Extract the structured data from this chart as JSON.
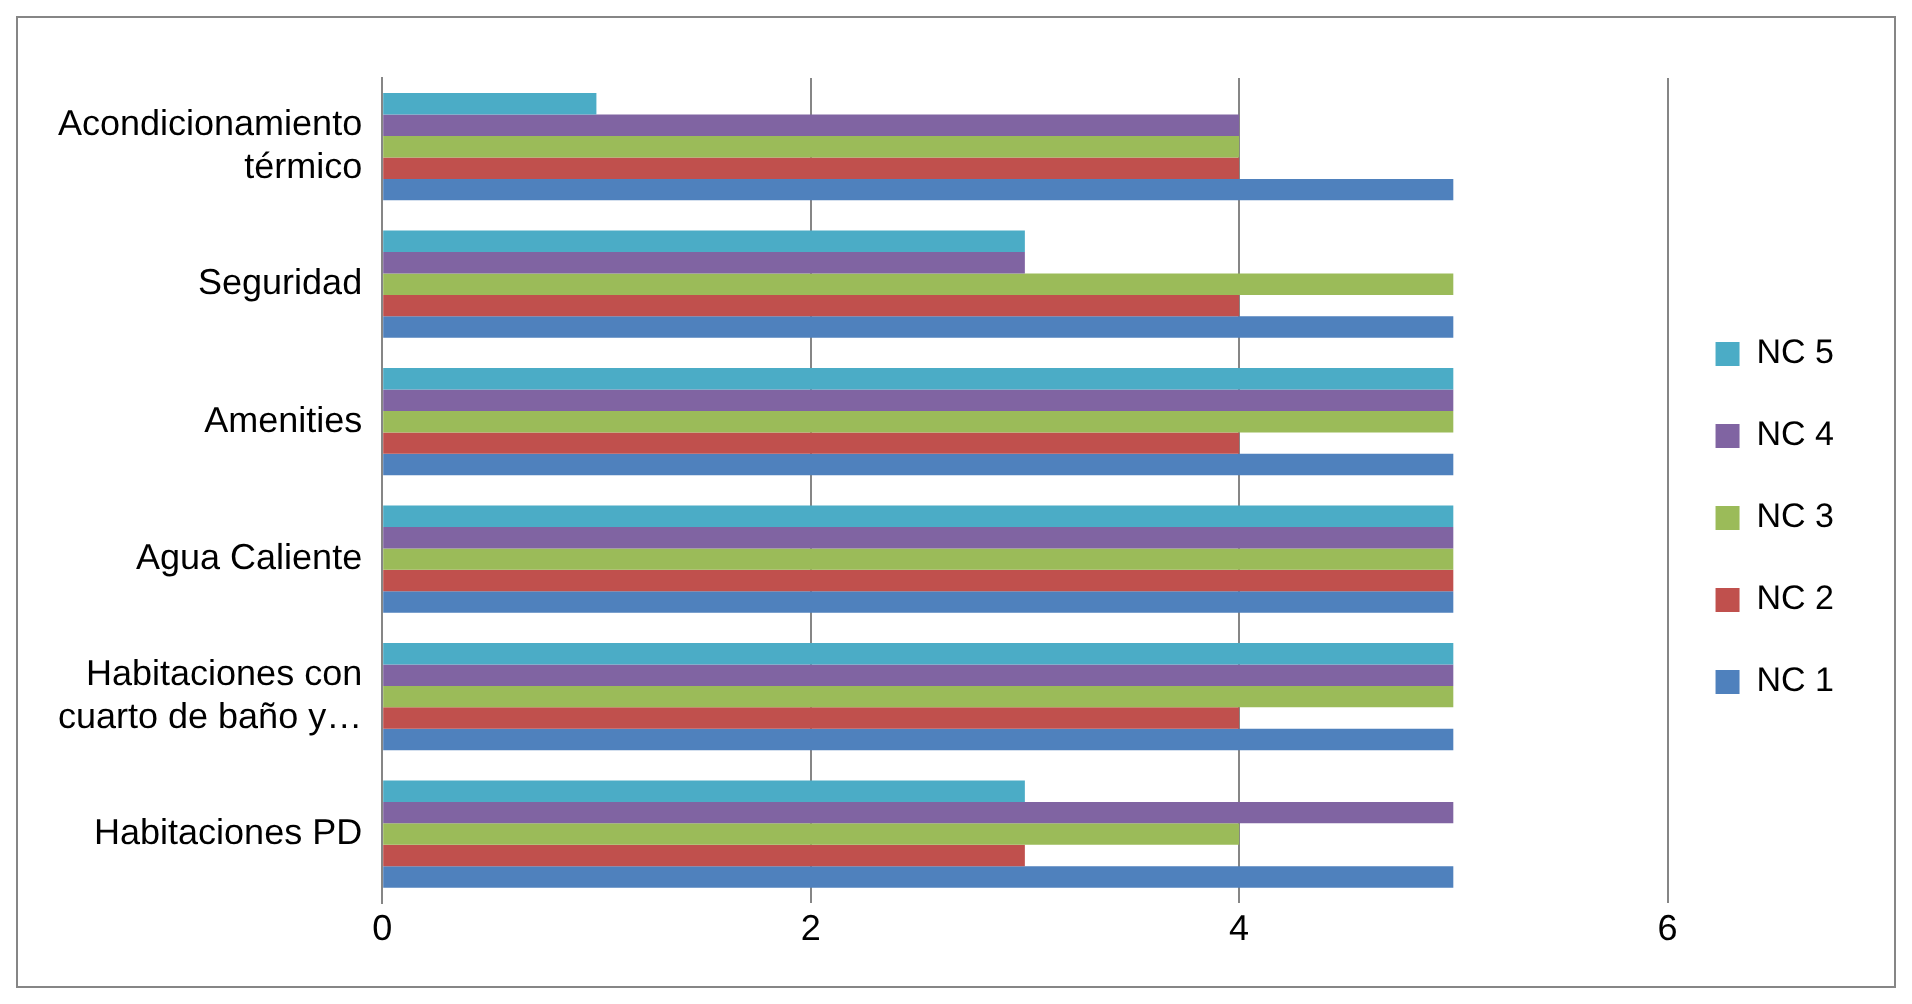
{
  "chart_data": {
    "type": "bar",
    "orientation": "horizontal",
    "categories": [
      "Acondicionamiento térmico",
      "Seguridad",
      "Amenities",
      "Agua Caliente",
      "Habitaciones con cuarto de baño y…",
      "Habitaciones PD"
    ],
    "series": [
      {
        "name": "NC 5",
        "color": "#4bacc6",
        "values": [
          1,
          3,
          5,
          5,
          5,
          3
        ]
      },
      {
        "name": "NC 4",
        "color": "#8064a2",
        "values": [
          4,
          3,
          5,
          5,
          5,
          5
        ]
      },
      {
        "name": "NC 3",
        "color": "#9bbb59",
        "values": [
          4,
          5,
          5,
          5,
          5,
          4
        ]
      },
      {
        "name": "NC 2",
        "color": "#c0504d",
        "values": [
          4,
          4,
          4,
          5,
          4,
          3
        ]
      },
      {
        "name": "NC 1",
        "color": "#4f81bd",
        "values": [
          5,
          5,
          5,
          5,
          5,
          5
        ]
      }
    ],
    "xlim": [
      0,
      6
    ],
    "xticks": [
      0,
      2,
      4,
      6
    ],
    "grid": "x",
    "legend": "right"
  }
}
